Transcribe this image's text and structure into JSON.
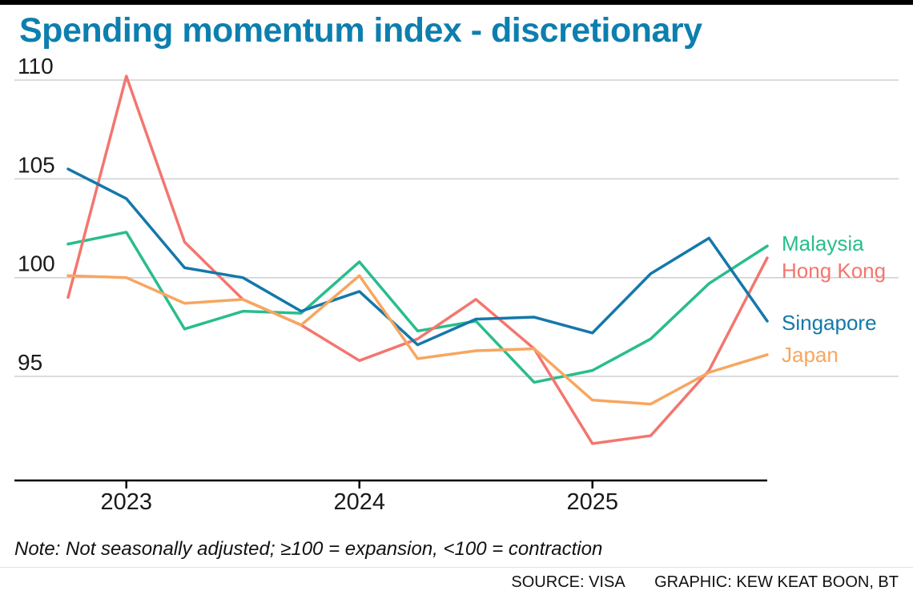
{
  "title": "Spending momentum index - discretionary",
  "note": "Note: Not seasonally adjusted; ≥100 = expansion, <100 = contraction",
  "footer": {
    "source": "SOURCE: VISA",
    "credit": "GRAPHIC: KEW KEAT BOON, BT"
  },
  "colors": {
    "title": "#0d7fae",
    "top_rule": "#000000",
    "gridline": "#cfcfcf",
    "axis": "#000000",
    "tick_text": "#1a1a1a"
  },
  "chart_data": {
    "type": "line",
    "title": "Spending momentum index - discretionary",
    "x_period": "quarterly",
    "x": [
      "2022-Q4",
      "2023-Q1",
      "2023-Q2",
      "2023-Q3",
      "2023-Q4",
      "2024-Q1",
      "2024-Q2",
      "2024-Q3",
      "2024-Q4",
      "2025-Q1",
      "2025-Q2",
      "2025-Q3",
      "2025-Q4"
    ],
    "x_tick_labels": [
      {
        "label": "2023",
        "index": 1
      },
      {
        "label": "2024",
        "index": 5
      },
      {
        "label": "2025",
        "index": 9
      }
    ],
    "yticks": [
      95,
      100,
      105,
      110
    ],
    "ylim": [
      89.7,
      112
    ],
    "grid": "horizontal",
    "legend_position": "right-of-lines",
    "series": [
      {
        "name": "Malaysia",
        "color": "#29bd8c",
        "label_dy": -3,
        "values": [
          101.7,
          102.3,
          97.4,
          98.3,
          98.2,
          100.8,
          97.3,
          97.8,
          94.7,
          95.3,
          96.9,
          99.7,
          101.6
        ]
      },
      {
        "name": "Hong Kong",
        "color": "#f3766f",
        "label_dy": 16,
        "values": [
          99.0,
          110.2,
          101.8,
          98.9,
          97.6,
          95.8,
          96.9,
          98.9,
          96.4,
          91.6,
          92.0,
          95.3,
          101.0
        ]
      },
      {
        "name": "Singapore",
        "color": "#1478aa",
        "label_dy": 2,
        "values": [
          105.5,
          104.0,
          100.5,
          100.0,
          98.3,
          99.3,
          96.6,
          97.9,
          98.0,
          97.2,
          100.2,
          102.0,
          97.8
        ]
      },
      {
        "name": "Japan",
        "color": "#f7a660",
        "label_dy": 0,
        "values": [
          100.1,
          100.0,
          98.7,
          98.9,
          97.6,
          100.1,
          95.9,
          96.3,
          96.4,
          93.8,
          93.6,
          95.2,
          96.1
        ]
      }
    ]
  }
}
